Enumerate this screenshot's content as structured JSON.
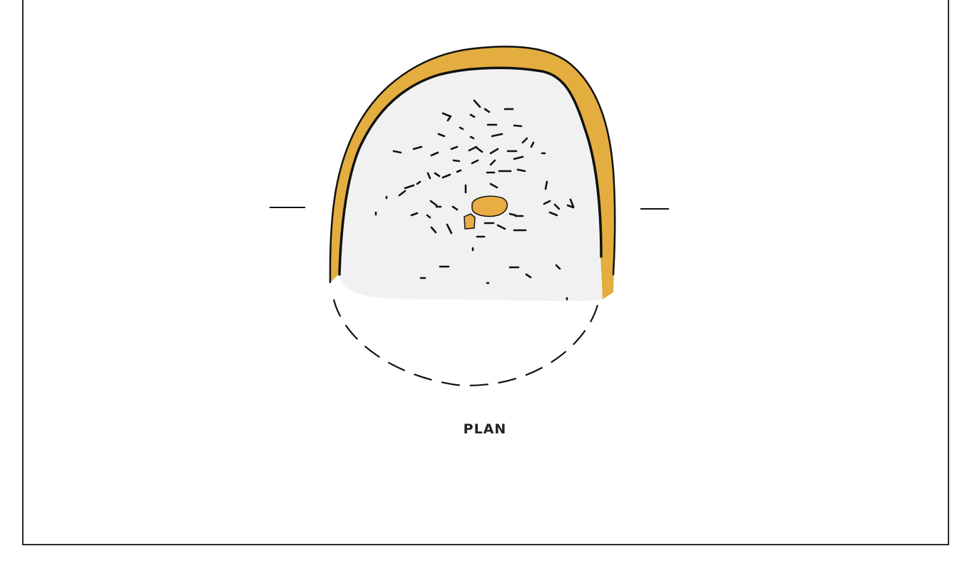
{
  "figure": {
    "caption": "PLAN",
    "colors": {
      "wall": "#e4ad3f",
      "floor": "#f1f1f1",
      "outline": "#111111",
      "hearth": "#e9ad45",
      "frame": "#2a2a2a"
    }
  }
}
